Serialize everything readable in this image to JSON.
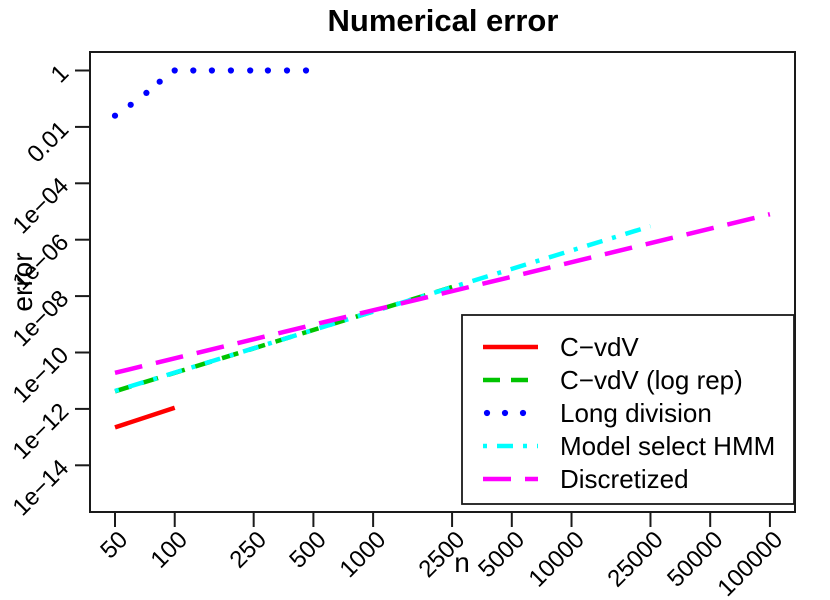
{
  "figure": {
    "background": "#ffffff",
    "axis_color": "#1a1a1a"
  },
  "chart_data": {
    "type": "line",
    "title": "Numerical error",
    "xlabel": "n",
    "ylabel": "error",
    "x_scale": "log",
    "y_scale": "log",
    "xlim": [
      50,
      100000
    ],
    "ylim": [
      3e-16,
      3
    ],
    "grid": false,
    "legend_position": "bottom-right",
    "x_ticks": [
      {
        "value": 50,
        "label": "50"
      },
      {
        "value": 100,
        "label": "100"
      },
      {
        "value": 250,
        "label": "250"
      },
      {
        "value": 500,
        "label": "500"
      },
      {
        "value": 1000,
        "label": "1000"
      },
      {
        "value": 2500,
        "label": "2500"
      },
      {
        "value": 5000,
        "label": "5000"
      },
      {
        "value": 10000,
        "label": "10000"
      },
      {
        "value": 25000,
        "label": "25000"
      },
      {
        "value": 50000,
        "label": "50000"
      },
      {
        "value": 100000,
        "label": "100000"
      }
    ],
    "y_ticks": [
      {
        "value": 1,
        "label": "1"
      },
      {
        "value": 0.01,
        "label": "0.01"
      },
      {
        "value": 0.0001,
        "label": "1e−04"
      },
      {
        "value": 1e-06,
        "label": "1e−06"
      },
      {
        "value": 1e-08,
        "label": "1e−08"
      },
      {
        "value": 1e-10,
        "label": "1e−10"
      },
      {
        "value": 1e-12,
        "label": "1e−12"
      },
      {
        "value": 1e-14,
        "label": "1e−14"
      }
    ],
    "series": [
      {
        "name": "C−vdV",
        "color": "#FF0000",
        "line_style": "solid",
        "points": [
          [
            50,
            2.2e-13
          ],
          [
            100,
            1.1e-12
          ]
        ]
      },
      {
        "name": "C−vdV (log rep)",
        "color": "#00C400",
        "line_style": "dashed",
        "points": [
          [
            50,
            4.2e-12
          ],
          [
            2500,
            2.1e-08
          ]
        ]
      },
      {
        "name": "Long division",
        "color": "#0000FF",
        "line_style": "dotted",
        "points": [
          [
            50,
            0.025
          ],
          [
            60,
            0.061
          ],
          [
            72,
            0.16
          ],
          [
            84,
            0.4
          ],
          [
            100,
            1
          ],
          [
            124,
            1
          ],
          [
            154,
            1
          ],
          [
            192,
            1
          ],
          [
            240,
            1
          ],
          [
            295,
            1
          ],
          [
            368,
            1
          ],
          [
            459,
            1
          ]
        ]
      },
      {
        "name": "Model select HMM",
        "color": "#00FFFF",
        "line_style": "dotdash",
        "points": [
          [
            50,
            4.3e-12
          ],
          [
            25000,
            3e-06
          ]
        ]
      },
      {
        "name": "Discretized",
        "color": "#FF00FF",
        "line_style": "longdash",
        "points": [
          [
            50,
            1.9e-11
          ],
          [
            100000,
            8e-06
          ]
        ]
      }
    ]
  }
}
